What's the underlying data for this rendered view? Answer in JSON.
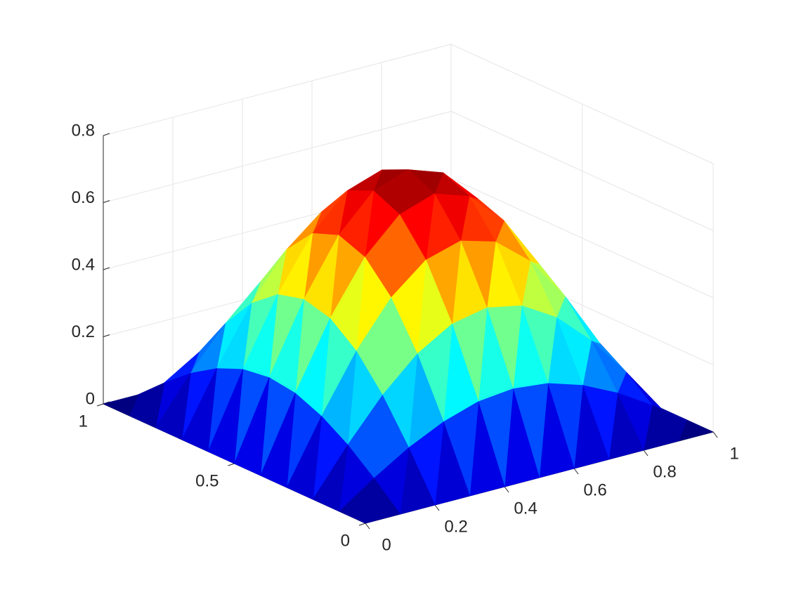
{
  "chart_data": {
    "type": "surface",
    "x": [
      0,
      0.1,
      0.2,
      0.3,
      0.4,
      0.5,
      0.6,
      0.7,
      0.8,
      0.9,
      1
    ],
    "y": [
      0,
      0.1,
      0.2,
      0.3,
      0.4,
      0.5,
      0.6,
      0.7,
      0.8,
      0.9,
      1
    ],
    "z": [
      [
        0,
        0,
        0,
        0,
        0,
        0,
        0,
        0,
        0,
        0,
        0
      ],
      [
        0,
        0.071,
        0.135,
        0.185,
        0.218,
        0.229,
        0.218,
        0.185,
        0.135,
        0.071,
        0
      ],
      [
        0,
        0.135,
        0.256,
        0.352,
        0.414,
        0.435,
        0.414,
        0.352,
        0.256,
        0.135,
        0
      ],
      [
        0,
        0.185,
        0.352,
        0.484,
        0.569,
        0.599,
        0.569,
        0.484,
        0.352,
        0.185,
        0
      ],
      [
        0,
        0.218,
        0.414,
        0.569,
        0.669,
        0.704,
        0.669,
        0.569,
        0.414,
        0.218,
        0
      ],
      [
        0,
        0.229,
        0.435,
        0.599,
        0.704,
        0.74,
        0.704,
        0.599,
        0.435,
        0.229,
        0
      ],
      [
        0,
        0.218,
        0.414,
        0.569,
        0.669,
        0.704,
        0.669,
        0.569,
        0.414,
        0.218,
        0
      ],
      [
        0,
        0.185,
        0.352,
        0.484,
        0.569,
        0.599,
        0.569,
        0.484,
        0.352,
        0.185,
        0
      ],
      [
        0,
        0.135,
        0.256,
        0.352,
        0.414,
        0.435,
        0.414,
        0.352,
        0.256,
        0.135,
        0
      ],
      [
        0,
        0.071,
        0.135,
        0.185,
        0.218,
        0.229,
        0.218,
        0.185,
        0.135,
        0.071,
        0
      ],
      [
        0,
        0,
        0,
        0,
        0,
        0,
        0,
        0,
        0,
        0,
        0
      ]
    ],
    "xlim": [
      0,
      1
    ],
    "ylim": [
      0,
      1
    ],
    "zlim": [
      0,
      0.8
    ],
    "xticks": [
      0,
      0.2,
      0.4,
      0.6,
      0.8,
      1
    ],
    "yticks": [
      0,
      0.5,
      1
    ],
    "zticks": [
      0,
      0.2,
      0.4,
      0.6,
      0.8
    ],
    "colormap": "jet",
    "grid": true
  }
}
